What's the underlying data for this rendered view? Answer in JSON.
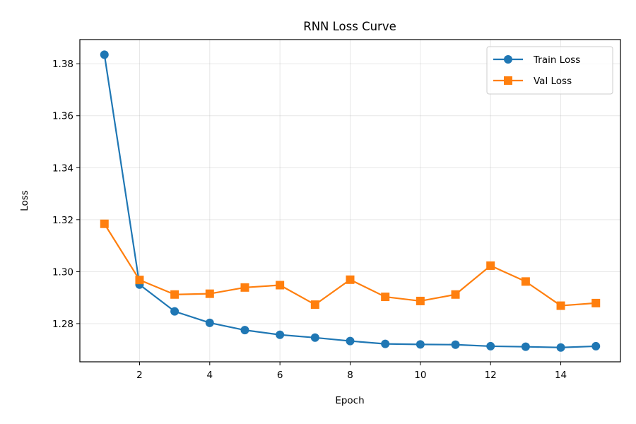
{
  "chart_data": {
    "type": "line",
    "title": "RNN Loss Curve",
    "xlabel": "Epoch",
    "ylabel": "Loss",
    "xlim": [
      0.3,
      15.7
    ],
    "ylim": [
      1.2653,
      1.3893
    ],
    "xticks": [
      2,
      4,
      6,
      8,
      10,
      12,
      14
    ],
    "yticks": [
      1.28,
      1.3,
      1.32,
      1.34,
      1.36,
      1.38
    ],
    "ytick_labels": [
      "1.28",
      "1.30",
      "1.32",
      "1.34",
      "1.36",
      "1.38"
    ],
    "grid": true,
    "legend_position": "top-right",
    "x": [
      1,
      2,
      3,
      4,
      5,
      6,
      7,
      8,
      9,
      10,
      11,
      12,
      13,
      14,
      15
    ],
    "series": [
      {
        "name": "Train Loss",
        "color": "#1f77b4",
        "marker": "circle",
        "values": [
          1.3835,
          1.295,
          1.2847,
          1.2803,
          1.2775,
          1.2757,
          1.2746,
          1.2733,
          1.2722,
          1.272,
          1.2719,
          1.2713,
          1.2711,
          1.2708,
          1.2713
        ]
      },
      {
        "name": "Val Loss",
        "color": "#ff7f0e",
        "marker": "square",
        "values": [
          1.3184,
          1.2968,
          1.2912,
          1.2915,
          1.2939,
          1.2948,
          1.2873,
          1.2969,
          1.2903,
          1.2887,
          1.2912,
          1.3023,
          1.2962,
          1.2869,
          1.2879
        ]
      }
    ]
  }
}
